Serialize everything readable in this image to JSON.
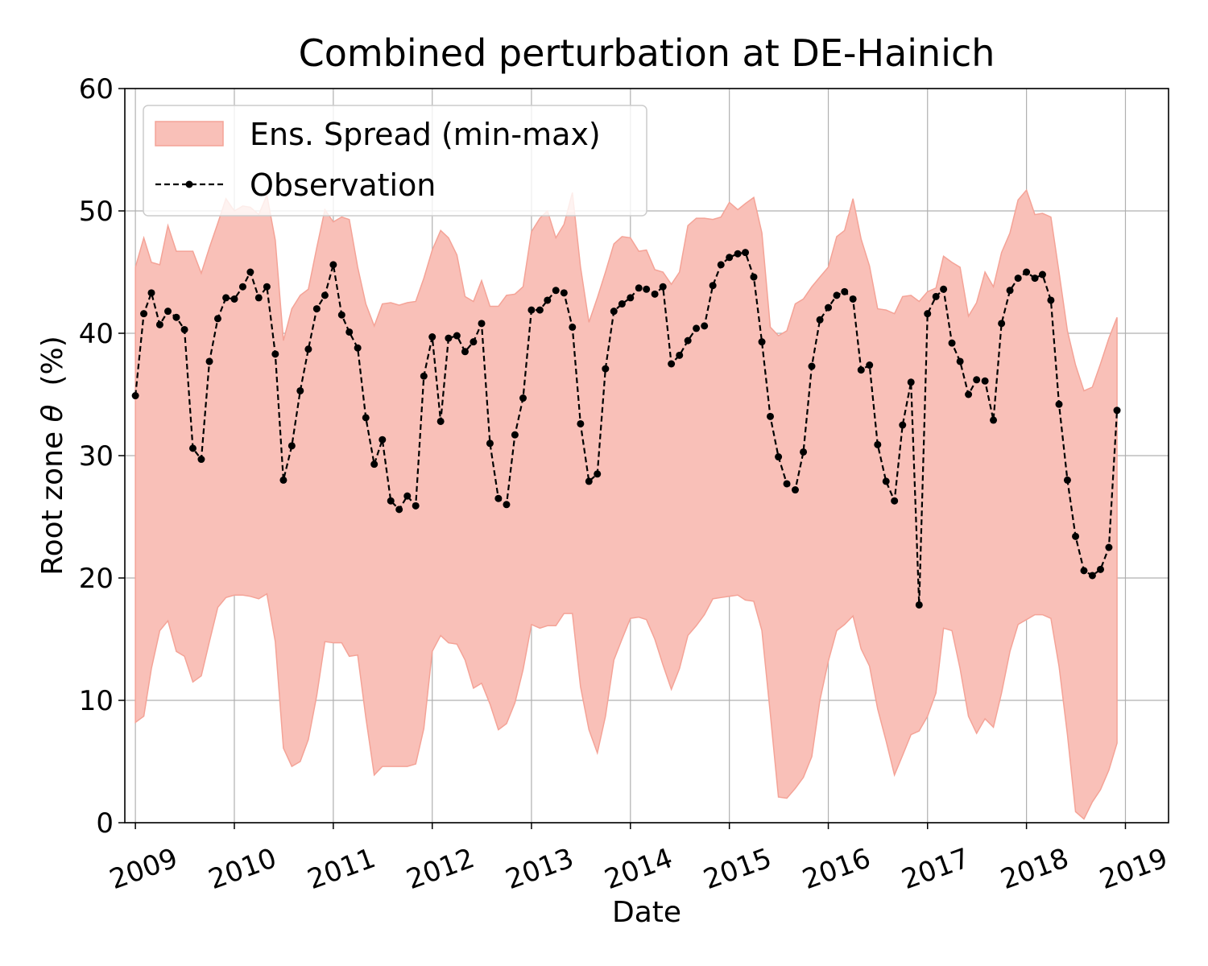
{
  "chart_data": {
    "type": "area",
    "title": "Combined perturbation at DE-Hainich",
    "xlabel": "Date",
    "ylabel_prefix": "Root zone ",
    "ylabel_symbol": "θ",
    "ylabel_suffix": "  (%)",
    "xlim": [
      "2008-11-23",
      "2019-06-09"
    ],
    "ylim": [
      0,
      60
    ],
    "x_ticks": [
      "2009",
      "2010",
      "2011",
      "2012",
      "2013",
      "2014",
      "2015",
      "2016",
      "2017",
      "2018",
      "2019"
    ],
    "y_ticks": [
      "0",
      "10",
      "20",
      "30",
      "40",
      "50",
      "60"
    ],
    "grid": true,
    "legend_position": "top-left",
    "legend": {
      "spread_label": "Ens. Spread (min-max)",
      "observation_label": "Observation"
    },
    "colors": {
      "spread_fill": "#f9c0b8",
      "spread_edge": "#f4a397",
      "observation": "#000000"
    },
    "dates": [
      "2009-01",
      "2009-02",
      "2009-03",
      "2009-04",
      "2009-05",
      "2009-06",
      "2009-07",
      "2009-08",
      "2009-09",
      "2009-10",
      "2009-11",
      "2009-12",
      "2010-01",
      "2010-02",
      "2010-03",
      "2010-04",
      "2010-05",
      "2010-06",
      "2010-07",
      "2010-08",
      "2010-09",
      "2010-10",
      "2010-11",
      "2010-12",
      "2011-01",
      "2011-02",
      "2011-03",
      "2011-04",
      "2011-05",
      "2011-06",
      "2011-07",
      "2011-08",
      "2011-09",
      "2011-10",
      "2011-11",
      "2011-12",
      "2012-01",
      "2012-02",
      "2012-03",
      "2012-04",
      "2012-05",
      "2012-06",
      "2012-07",
      "2012-08",
      "2012-09",
      "2012-10",
      "2012-11",
      "2012-12",
      "2013-01",
      "2013-02",
      "2013-03",
      "2013-04",
      "2013-05",
      "2013-06",
      "2013-07",
      "2013-08",
      "2013-09",
      "2013-10",
      "2013-11",
      "2013-12",
      "2014-01",
      "2014-02",
      "2014-03",
      "2014-04",
      "2014-05",
      "2014-06",
      "2014-07",
      "2014-08",
      "2014-09",
      "2014-10",
      "2014-11",
      "2014-12",
      "2015-01",
      "2015-02",
      "2015-03",
      "2015-04",
      "2015-05",
      "2015-06",
      "2015-07",
      "2015-08",
      "2015-09",
      "2015-10",
      "2015-11",
      "2015-12",
      "2016-01",
      "2016-02",
      "2016-03",
      "2016-04",
      "2016-05",
      "2016-06",
      "2016-07",
      "2016-08",
      "2016-09",
      "2016-10",
      "2016-11",
      "2016-12",
      "2017-01",
      "2017-02",
      "2017-03",
      "2017-04",
      "2017-05",
      "2017-06",
      "2017-07",
      "2017-08",
      "2017-09",
      "2017-10",
      "2017-11",
      "2017-12",
      "2018-01",
      "2018-02",
      "2018-03",
      "2018-04",
      "2018-05",
      "2018-06",
      "2018-07",
      "2018-08",
      "2018-09",
      "2018-10",
      "2018-11",
      "2018-12"
    ],
    "observation": [
      34.9,
      41.6,
      43.3,
      40.7,
      41.8,
      41.3,
      40.3,
      30.6,
      29.7,
      37.7,
      41.2,
      42.9,
      42.8,
      43.8,
      45.0,
      42.9,
      43.8,
      38.3,
      28.0,
      30.8,
      35.3,
      38.7,
      42.0,
      43.1,
      45.6,
      41.5,
      40.1,
      38.8,
      33.1,
      29.3,
      31.3,
      26.3,
      25.6,
      26.7,
      25.9,
      36.5,
      39.7,
      32.8,
      39.6,
      39.8,
      38.5,
      39.3,
      40.8,
      31.0,
      26.5,
      26.0,
      31.7,
      34.7,
      41.9,
      41.9,
      42.7,
      43.5,
      43.3,
      40.5,
      32.6,
      27.9,
      28.5,
      37.1,
      41.8,
      42.4,
      42.9,
      43.7,
      43.6,
      43.2,
      43.8,
      37.5,
      38.2,
      39.4,
      40.4,
      40.6,
      43.9,
      45.6,
      46.2,
      46.5,
      46.6,
      44.6,
      39.3,
      33.2,
      29.9,
      27.7,
      27.2,
      30.3,
      37.3,
      41.1,
      42.1,
      43.1,
      43.4,
      42.8,
      37.0,
      37.4,
      30.9,
      27.9,
      26.3,
      32.5,
      36.0,
      17.8,
      41.6,
      43.0,
      43.6,
      39.2,
      37.7,
      35.0,
      36.2,
      36.1,
      32.9,
      40.8,
      43.5,
      44.5,
      45.0,
      44.5,
      44.8,
      42.7,
      34.2,
      28.0,
      23.4,
      20.6,
      20.2,
      20.7,
      22.5,
      33.7
    ],
    "spread_max": [
      45.4,
      47.8,
      45.8,
      45.6,
      48.8,
      46.7,
      46.7,
      46.7,
      44.9,
      47.0,
      49.0,
      51.0,
      50.0,
      50.4,
      50.3,
      49.7,
      51.3,
      47.6,
      39.4,
      42.0,
      43.1,
      43.6,
      47.0,
      50.1,
      49.1,
      49.5,
      49.3,
      45.4,
      42.4,
      40.6,
      42.4,
      42.5,
      42.3,
      42.5,
      42.6,
      44.5,
      46.8,
      48.4,
      47.8,
      46.4,
      43.0,
      42.6,
      44.3,
      42.2,
      42.2,
      43.1,
      43.2,
      43.8,
      48.3,
      49.4,
      50.0,
      47.8,
      48.9,
      51.5,
      45.4,
      40.9,
      42.9,
      45.0,
      47.3,
      47.9,
      47.8,
      46.7,
      46.8,
      45.2,
      45.0,
      44.0,
      45.0,
      48.8,
      49.4,
      49.4,
      49.3,
      49.5,
      50.7,
      50.1,
      50.6,
      51.1,
      48.2,
      40.5,
      39.8,
      40.2,
      42.4,
      42.8,
      43.8,
      44.6,
      45.4,
      47.9,
      48.4,
      51.0,
      47.7,
      45.5,
      42.0,
      41.9,
      41.6,
      43.0,
      43.1,
      42.6,
      43.4,
      43.7,
      46.3,
      45.8,
      45.4,
      41.4,
      42.5,
      45.0,
      43.8,
      46.6,
      48.2,
      50.9,
      51.7,
      49.7,
      49.8,
      49.5,
      45.0,
      40.2,
      37.4,
      35.3,
      35.6,
      37.5,
      39.6,
      41.3
    ],
    "spread_min": [
      8.2,
      8.7,
      12.6,
      15.7,
      16.5,
      14.0,
      13.6,
      11.5,
      12.0,
      14.8,
      17.6,
      18.4,
      18.6,
      18.6,
      18.5,
      18.3,
      18.7,
      14.8,
      6.1,
      4.6,
      5.0,
      6.8,
      10.4,
      14.8,
      14.7,
      14.7,
      13.6,
      13.7,
      8.6,
      3.9,
      4.6,
      4.6,
      4.6,
      4.6,
      4.8,
      7.7,
      14.0,
      15.3,
      14.7,
      14.6,
      13.3,
      11.0,
      11.4,
      9.7,
      7.6,
      8.1,
      9.8,
      12.5,
      16.2,
      15.9,
      16.1,
      16.1,
      17.1,
      17.1,
      11.1,
      7.6,
      5.7,
      8.7,
      13.3,
      15.0,
      16.7,
      16.8,
      16.6,
      15.0,
      12.9,
      10.9,
      12.6,
      15.3,
      16.1,
      17.0,
      18.3,
      18.4,
      18.5,
      18.6,
      18.2,
      18.1,
      15.7,
      8.9,
      2.1,
      2.0,
      2.8,
      3.7,
      5.4,
      10.0,
      13.2,
      15.7,
      16.2,
      16.9,
      14.2,
      12.8,
      9.3,
      6.7,
      3.9,
      5.5,
      7.2,
      7.5,
      8.7,
      10.6,
      15.9,
      15.7,
      12.6,
      8.7,
      7.3,
      8.5,
      7.8,
      10.6,
      14.0,
      16.2,
      16.6,
      17.0,
      17.0,
      16.7,
      12.8,
      7.2,
      0.9,
      0.3,
      1.7,
      2.7,
      4.3,
      6.5
    ]
  }
}
